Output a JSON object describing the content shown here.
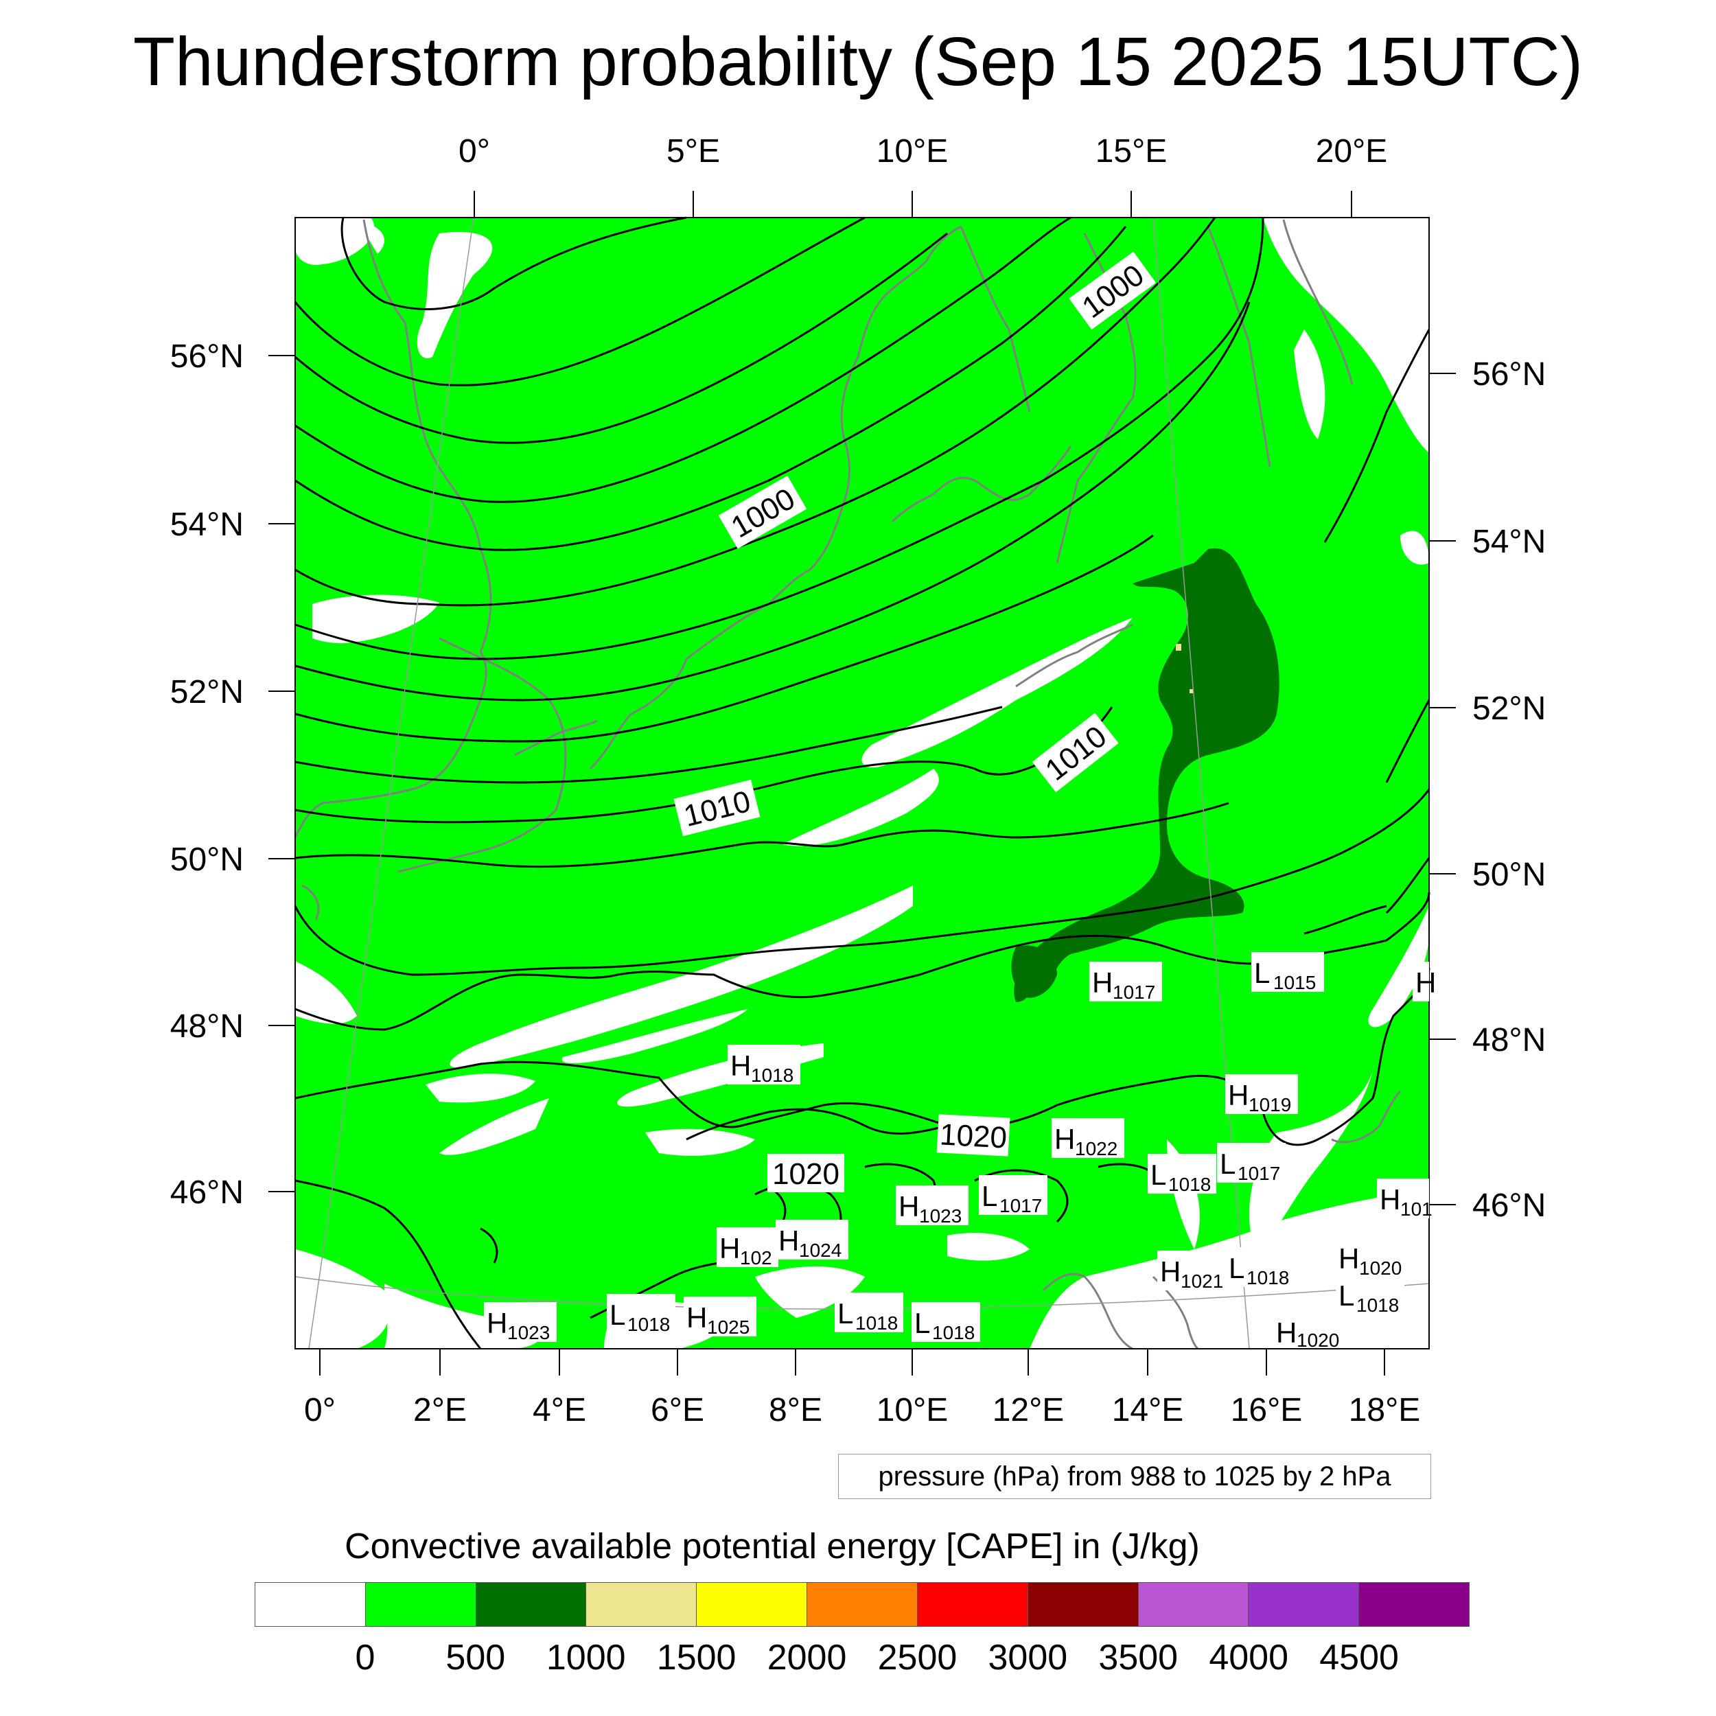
{
  "title": "Thunderstorm probability (Sep 15 2025 15UTC)",
  "map": {
    "top_lon_labels": [
      "0°",
      "5°E",
      "10°E",
      "15°E",
      "20°E"
    ],
    "bottom_lon_labels": [
      "0°",
      "2°E",
      "4°E",
      "6°E",
      "8°E",
      "10°E",
      "12°E",
      "14°E",
      "16°E",
      "18°E"
    ],
    "left_lat_labels": [
      "56°N",
      "54°N",
      "52°N",
      "50°N",
      "48°N",
      "46°N"
    ],
    "right_lat_labels": [
      "56°N",
      "54°N",
      "52°N",
      "50°N",
      "48°N",
      "46°N"
    ],
    "contour_labels": [
      "1000",
      "1000",
      "1010",
      "1010",
      "1020",
      "1020"
    ],
    "pressure_centers": [
      {
        "type": "H",
        "value": "1017"
      },
      {
        "type": "L",
        "value": "1015"
      },
      {
        "type": "H",
        "value": "1018"
      },
      {
        "type": "H",
        "value": "1019"
      },
      {
        "type": "H",
        "value": "1022"
      },
      {
        "type": "L",
        "value": "1018"
      },
      {
        "type": "L",
        "value": "1017"
      },
      {
        "type": "L",
        "value": "1017"
      },
      {
        "type": "H",
        "value": "1023"
      },
      {
        "type": "H",
        "value": "102"
      },
      {
        "type": "H",
        "value": "1024"
      },
      {
        "type": "H",
        "value": "1021"
      },
      {
        "type": "L",
        "value": "1018"
      },
      {
        "type": "H",
        "value": "1020"
      },
      {
        "type": "L",
        "value": "1018"
      },
      {
        "type": "H",
        "value": "1023"
      },
      {
        "type": "L",
        "value": "1018"
      },
      {
        "type": "H",
        "value": "1025"
      },
      {
        "type": "L",
        "value": "1018"
      },
      {
        "type": "L",
        "value": "1018"
      },
      {
        "type": "H",
        "value": "1020"
      },
      {
        "type": "H",
        "value": "101"
      },
      {
        "type": "H",
        "value": ""
      }
    ],
    "colors": {
      "cape_0_500": "#00ff00",
      "cape_500_1000": "#007100",
      "cape_1000_1500": "#eee58f",
      "below_0": "#ffffff",
      "coastline": "#808080",
      "isobar": "#000000"
    }
  },
  "contour_info": "pressure (hPa) from 988 to 1025 by 2 hPa",
  "colorbar": {
    "title": "Convective available potential energy [CAPE] in (J/kg)",
    "colors": [
      "#ffffff",
      "#00ff00",
      "#007100",
      "#eee58f",
      "#ffff00",
      "#ff8000",
      "#ff0000",
      "#8b0000",
      "#ba55d3",
      "#9932cc",
      "#8b008b"
    ],
    "labels": [
      "0",
      "500",
      "1000",
      "1500",
      "2000",
      "2500",
      "3000",
      "3500",
      "4000",
      "4500"
    ]
  }
}
